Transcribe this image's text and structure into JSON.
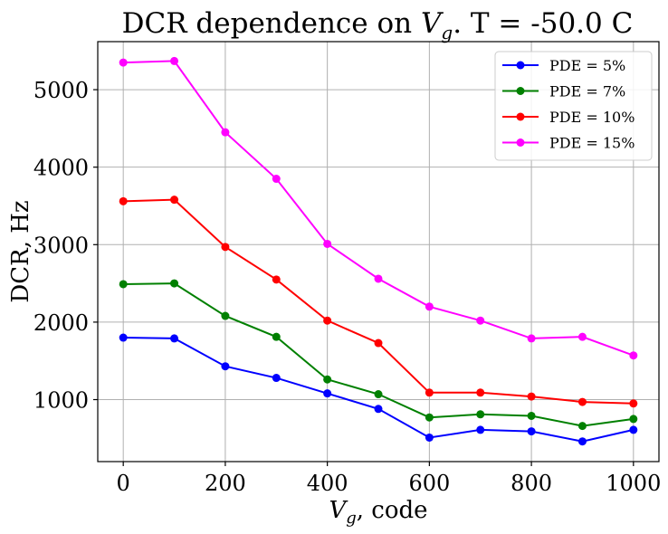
{
  "chart_data": {
    "type": "line",
    "title_prefix": "DCR dependence on ",
    "title_var": "V",
    "title_sub": "g",
    "title_suffix": ". T = -50.0 C",
    "xlabel_var": "V",
    "xlabel_sub": "g",
    "xlabel_suffix": ", code",
    "ylabel": "DCR, Hz",
    "x": [
      0,
      100,
      200,
      300,
      400,
      500,
      600,
      700,
      800,
      900,
      1000
    ],
    "xlim": [
      -50,
      1050
    ],
    "ylim": [
      200,
      5620
    ],
    "xticks": [
      0,
      200,
      400,
      600,
      800,
      1000
    ],
    "yticks": [
      1000,
      2000,
      3000,
      4000,
      5000
    ],
    "grid": true,
    "legend_position": "top-right",
    "series": [
      {
        "name": "PDE = 5%",
        "color": "#0000ff",
        "values": [
          1800,
          1790,
          1430,
          1280,
          1080,
          880,
          510,
          610,
          590,
          460,
          610
        ]
      },
      {
        "name": "PDE = 7%",
        "color": "#008000",
        "values": [
          2490,
          2500,
          2080,
          1810,
          1260,
          1070,
          770,
          810,
          790,
          660,
          750
        ]
      },
      {
        "name": "PDE = 10%",
        "color": "#ff0000",
        "values": [
          3560,
          3580,
          2970,
          2550,
          2020,
          1730,
          1090,
          1090,
          1040,
          970,
          950
        ]
      },
      {
        "name": "PDE = 15%",
        "color": "#ff00ff",
        "values": [
          5350,
          5370,
          4450,
          3850,
          3010,
          2560,
          2200,
          2020,
          1790,
          1810,
          1570
        ]
      }
    ]
  }
}
